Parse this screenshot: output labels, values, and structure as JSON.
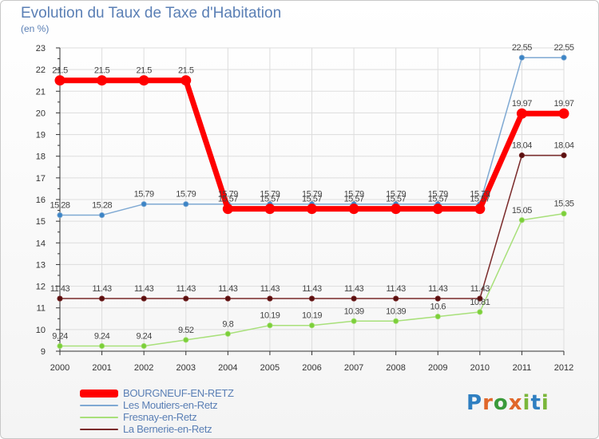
{
  "title": "Evolution du Taux de Taxe d'Habitation",
  "unit": "(en %)",
  "colors": {
    "axis": "#333333",
    "grid": "#dddddd",
    "title": "#5a7fb5",
    "tick": "#333333"
  },
  "chart_data": {
    "type": "line",
    "title": "Evolution du Taux de Taxe d'Habitation",
    "ylabel": "(en %)",
    "xlabel": "",
    "ylim": [
      9,
      23
    ],
    "y_ticks": [
      9,
      10,
      11,
      12,
      13,
      14,
      15,
      16,
      17,
      18,
      19,
      20,
      21,
      22,
      23
    ],
    "categories": [
      "2000",
      "2001",
      "2002",
      "2003",
      "2004",
      "2005",
      "2006",
      "2007",
      "2008",
      "2009",
      "2010",
      "2011",
      "2012"
    ],
    "grid": true,
    "legend_position": "bottom-left",
    "series": [
      {
        "name": "BOURGNEUF-EN-RETZ",
        "color": "#ff0000",
        "values": [
          21.5,
          21.5,
          21.5,
          21.5,
          15.57,
          15.57,
          15.57,
          15.57,
          15.57,
          15.57,
          15.57,
          19.97,
          19.97
        ],
        "labels": [
          "21.5",
          "21.5",
          "21.5",
          "21.5",
          "15.57",
          "15.57",
          "15.57",
          "15.57",
          "15.57",
          "15.57",
          "15.57",
          "19.97",
          "19.97"
        ]
      },
      {
        "name": "Les Moutiers-en-Retz",
        "color": "#7fa9d3",
        "values": [
          15.28,
          15.28,
          15.79,
          15.79,
          15.79,
          15.79,
          15.79,
          15.79,
          15.79,
          15.79,
          15.79,
          22.55,
          22.55
        ],
        "labels": [
          "15.28",
          "15.28",
          "15.79",
          "15.79",
          "15.79",
          "15.79",
          "15.79",
          "15.79",
          "15.79",
          "15.79",
          "15.79",
          "22.55",
          "22.55"
        ]
      },
      {
        "name": "Fresnay-en-Retz",
        "color": "#a8e07a",
        "values": [
          9.24,
          9.24,
          9.24,
          9.52,
          9.8,
          10.19,
          10.19,
          10.39,
          10.39,
          10.6,
          10.81,
          15.05,
          15.35
        ],
        "labels": [
          "9.24",
          "9.24",
          "9.24",
          "9.52",
          "9.8",
          "10.19",
          "10.19",
          "10.39",
          "10.39",
          "10.6",
          "10.81",
          "15.05",
          "15.35"
        ]
      },
      {
        "name": "La Bernerie-en-Retz",
        "color": "#7a2a2a",
        "values": [
          11.43,
          11.43,
          11.43,
          11.43,
          11.43,
          11.43,
          11.43,
          11.43,
          11.43,
          11.43,
          11.43,
          18.04,
          18.04
        ],
        "labels": [
          "11.43",
          "11.43",
          "11.43",
          "11.43",
          "11.43",
          "11.43",
          "11.43",
          "11.43",
          "11.43",
          "11.43",
          "11.43",
          "18.04",
          "18.04"
        ]
      }
    ]
  },
  "legend": {
    "items": [
      "BOURGNEUF-EN-RETZ",
      "Les Moutiers-en-Retz",
      "Fresnay-en-Retz",
      "La Bernerie-en-Retz"
    ]
  },
  "logo": {
    "text": "Proxiti"
  }
}
